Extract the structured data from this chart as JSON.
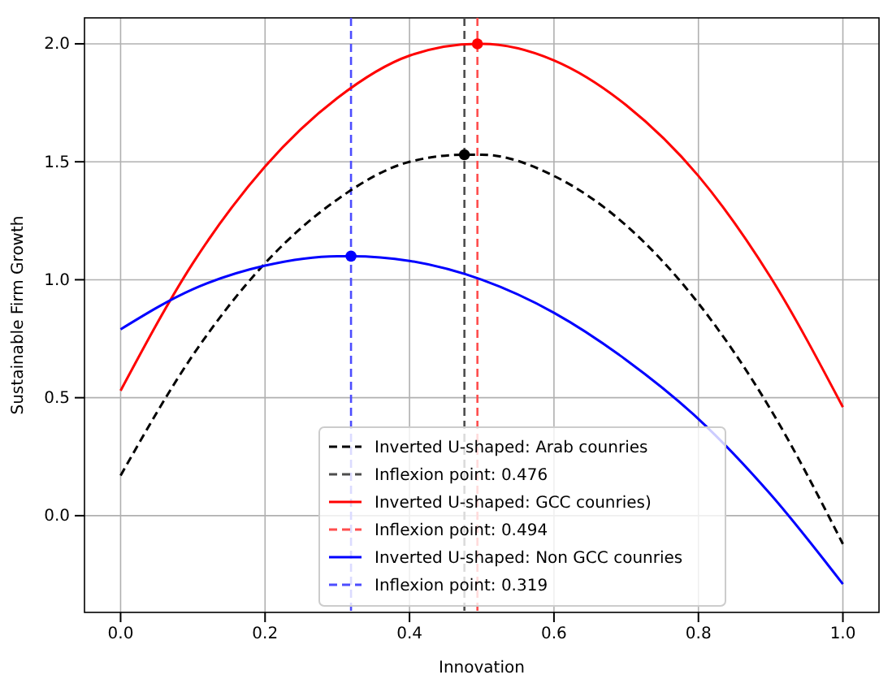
{
  "chart_data": {
    "type": "line",
    "xlabel": "Innovation",
    "ylabel": "Sustainable Firm Growth",
    "xlim": [
      -0.05,
      1.05
    ],
    "ylim": [
      -0.41,
      2.11
    ],
    "xticks": [
      {
        "value": 0,
        "label": "0.0"
      },
      0.2,
      0.4,
      0.6,
      0.8,
      {
        "value": 1,
        "label": "1.0"
      }
    ],
    "yticks": [
      {
        "value": 0,
        "label": "0.0"
      },
      0.5,
      {
        "value": 1,
        "label": "1.0"
      },
      1.5,
      {
        "value": 2,
        "label": "2.0"
      }
    ],
    "grid": true,
    "legend": "bottom",
    "series": [
      {
        "name": "Inverted U-shaped: Arab counries",
        "color": "#000000",
        "line_style": "dashed",
        "x": [
          0,
          0.1,
          0.2,
          0.3,
          0.4,
          0.476,
          0.5,
          0.6,
          0.7,
          0.8,
          0.9,
          1.0
        ],
        "values": [
          0.17,
          0.68,
          1.07,
          1.34,
          1.5,
          1.53,
          1.53,
          1.44,
          1.23,
          0.9,
          0.45,
          -0.12
        ]
      },
      {
        "name": "Inverted U-shaped: GCC counries)",
        "color": "#ff0000",
        "line_style": "solid",
        "x": [
          0,
          0.1,
          0.2,
          0.3,
          0.4,
          0.494,
          0.5,
          0.6,
          0.7,
          0.8,
          0.9,
          1.0
        ],
        "values": [
          0.53,
          1.07,
          1.48,
          1.77,
          1.95,
          2.0,
          2.0,
          1.93,
          1.74,
          1.44,
          1.01,
          0.46
        ]
      },
      {
        "name": "Inverted U-shaped: Non GCC counries",
        "color": "#0000ff",
        "line_style": "solid",
        "x": [
          0,
          0.1,
          0.2,
          0.3,
          0.319,
          0.4,
          0.5,
          0.6,
          0.7,
          0.8,
          0.9,
          1.0
        ],
        "values": [
          0.79,
          0.96,
          1.06,
          1.1,
          1.1,
          1.08,
          1.0,
          0.86,
          0.66,
          0.41,
          0.09,
          -0.29
        ]
      },
      {
        "type": "scatter",
        "marker": "circle",
        "color": "#000000",
        "x": [
          0.476
        ],
        "values": [
          1.53
        ]
      },
      {
        "type": "scatter",
        "marker": "circle",
        "color": "#ff0000",
        "x": [
          0.494
        ],
        "values": [
          2.0
        ]
      },
      {
        "type": "scatter",
        "marker": "circle",
        "color": "#0000ff",
        "x": [
          0.319
        ],
        "values": [
          1.1
        ]
      }
    ],
    "ref_lines": [
      {
        "axis": "x",
        "value": 0.476,
        "label": "Inflexion point: 0.476",
        "color": "#4d4d4d",
        "line_style": "dashed"
      },
      {
        "axis": "x",
        "value": 0.494,
        "label": "Inflexion point: 0.494",
        "color": "#ff4d4d",
        "line_style": "dashed"
      },
      {
        "axis": "x",
        "value": 0.319,
        "label": "Inflexion point: 0.319",
        "color": "#4d4dff",
        "line_style": "dashed"
      }
    ]
  }
}
